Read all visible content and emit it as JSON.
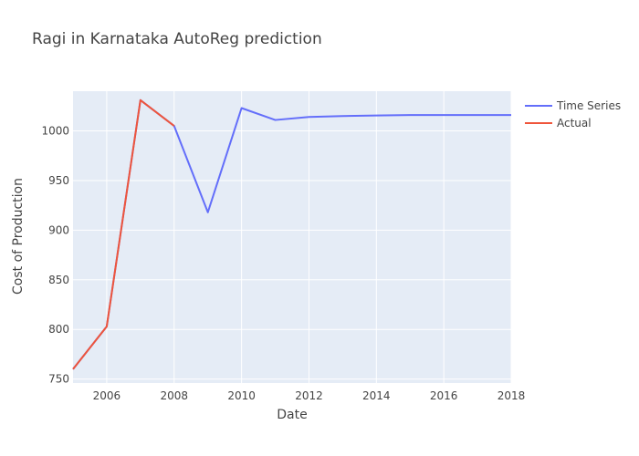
{
  "chart_data": {
    "type": "line",
    "title": "Ragi in Karnataka AutoReg prediction",
    "xlabel": "Date",
    "ylabel": "Cost of Production",
    "xlim": [
      2005,
      2018
    ],
    "ylim": [
      746,
      1040
    ],
    "xticks": [
      2006,
      2008,
      2010,
      2012,
      2014,
      2016,
      2018
    ],
    "yticks": [
      750,
      800,
      850,
      900,
      950,
      1000
    ],
    "grid": true,
    "legend_position": "top-right",
    "series": [
      {
        "name": "Time Series",
        "color": "#636efa",
        "x": [
          2005,
          2006,
          2007,
          2008,
          2009,
          2010,
          2011,
          2012,
          2013,
          2014,
          2015,
          2016,
          2017,
          2018
        ],
        "y": [
          760,
          803,
          1031,
          1005,
          918,
          1023,
          1011,
          1014,
          1015,
          1015.5,
          1016,
          1016,
          1016,
          1016
        ]
      },
      {
        "name": "Actual",
        "color": "#ef553b",
        "x": [
          2005,
          2006,
          2007,
          2008
        ],
        "y": [
          760,
          803,
          1031,
          1005
        ]
      }
    ]
  }
}
